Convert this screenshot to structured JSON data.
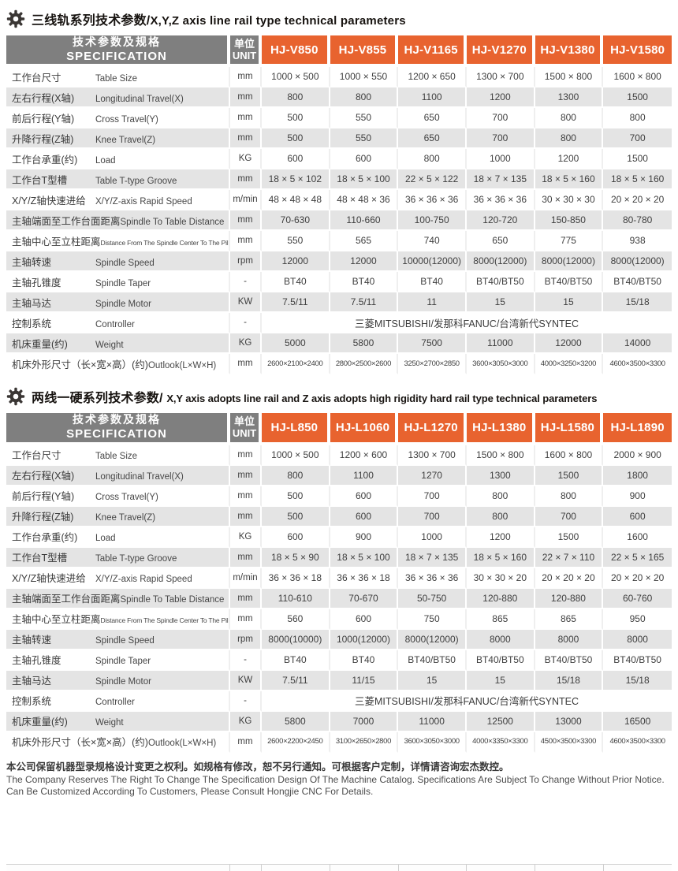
{
  "colors": {
    "accent_orange": "#E8632F",
    "header_gray": "#7F7F7F",
    "row_stripe_gray": "#E4E4E4"
  },
  "footer": {
    "line_zh": "本公司保留机器型录规格设计变更之权利。如规格有修改，恕不另行通知。可根据客户定制，详情请咨询宏杰数控。",
    "line_en": "The Company Reserves The Right To Change The Specification Design Of The Machine Catalog. Specifications Are Subject To Change Without Prior Notice. Can Be Customized According To Customers, Please Consult Hongjie CNC For Details."
  },
  "tables": [
    {
      "title_zh": "三线轨系列技术参数/",
      "title_en": "X,Y,Z axis line rail type technical parameters",
      "spec_header": {
        "zh": "技术参数及规格",
        "en": "SPECIFICATION"
      },
      "unit_header": {
        "zh": "单位",
        "en": "UNIT"
      },
      "models": [
        "HJ-V850",
        "HJ-V855",
        "HJ-V1165",
        "HJ-V1270",
        "HJ-V1380",
        "HJ-V1580"
      ],
      "rows": [
        {
          "label_zh": "工作台尺寸",
          "label_en": "Table Size",
          "unit": "mm",
          "values": [
            "1000 × 500",
            "1000 × 550",
            "1200 × 650",
            "1300 × 700",
            "1500 × 800",
            "1600 × 800"
          ]
        },
        {
          "label_zh": "左右行程(X轴)",
          "label_en": "Longitudinal Travel(X)",
          "unit": "mm",
          "values": [
            "800",
            "800",
            "1100",
            "1200",
            "1300",
            "1500"
          ]
        },
        {
          "label_zh": "前后行程(Y轴)",
          "label_en": "Cross Travel(Y)",
          "unit": "mm",
          "values": [
            "500",
            "550",
            "650",
            "700",
            "800",
            "800"
          ]
        },
        {
          "label_zh": "升降行程(Z轴)",
          "label_en": "Knee Travel(Z)",
          "unit": "mm",
          "values": [
            "500",
            "550",
            "650",
            "700",
            "800",
            "700"
          ]
        },
        {
          "label_zh": "工作台承重(约)",
          "label_en": "Load",
          "unit": "KG",
          "values": [
            "600",
            "600",
            "800",
            "1000",
            "1200",
            "1500"
          ]
        },
        {
          "label_zh": "工作台T型槽",
          "label_en": "Table T-type Groove",
          "unit": "mm",
          "values": [
            "18 × 5 × 102",
            "18 × 5 × 100",
            "22 × 5 × 122",
            "18 × 7 × 135",
            "18 × 5 × 160",
            "18 × 5 × 160"
          ]
        },
        {
          "label_zh": "X/Y/Z轴快速进给",
          "label_en": "X/Y/Z-axis Rapid Speed",
          "unit": "m/min",
          "values": [
            "48 × 48 × 48",
            "48 × 48 × 36",
            "36 × 36 × 36",
            "36 × 36 × 36",
            "30 × 30 × 30",
            "20 × 20 × 20"
          ]
        },
        {
          "label_zh": "主轴端面至工作台面距离",
          "label_en": "Spindle To Table Distance",
          "unit": "mm",
          "values": [
            "70-630",
            "110-660",
            "100-750",
            "120-720",
            "150-850",
            "80-780"
          ]
        },
        {
          "label_zh": "主轴中心至立柱距离",
          "label_en": "Distance From The Spindle Center To The Pillar",
          "small_label_en": true,
          "unit": "mm",
          "values": [
            "550",
            "565",
            "740",
            "650",
            "775",
            "938"
          ]
        },
        {
          "label_zh": "主轴转速",
          "label_en": "Spindle Speed",
          "unit": "rpm",
          "values": [
            "12000",
            "12000",
            "10000(12000)",
            "8000(12000)",
            "8000(12000)",
            "8000(12000)"
          ]
        },
        {
          "label_zh": "主轴孔锥度",
          "label_en": "Spindle Taper",
          "unit": "-",
          "values": [
            "BT40",
            "BT40",
            "BT40",
            "BT40/BT50",
            "BT40/BT50",
            "BT40/BT50"
          ]
        },
        {
          "label_zh": "主轴马达",
          "label_en": "Spindle Motor",
          "unit": "KW",
          "values": [
            "7.5/11",
            "7.5/11",
            "11",
            "15",
            "15",
            "15/18"
          ]
        },
        {
          "label_zh": "控制系统",
          "label_en": "Controller",
          "unit": "-",
          "merged_value": "三菱MITSUBISHI/发那科FANUC/台湾新代SYNTEC"
        },
        {
          "label_zh": "机床重量(约)",
          "label_en": "Weight",
          "unit": "KG",
          "values": [
            "5000",
            "5800",
            "7500",
            "11000",
            "12000",
            "14000"
          ]
        },
        {
          "label_zh": "机床外形尺寸（长×宽×高）(约)",
          "label_en": "Outlook(L×W×H)",
          "unit": "mm",
          "small_values": true,
          "values": [
            "2600×2100×2400",
            "2800×2500×2600",
            "3250×2700×2850",
            "3600×3050×3000",
            "4000×3250×3200",
            "4600×3500×3300"
          ]
        }
      ]
    },
    {
      "title_zh": "两线一硬系列技术参数/",
      "title_en": "X,Y axis adopts line rail and Z axis adopts high rigidity hard rail type technical parameters",
      "spec_header": {
        "zh": "技术参数及规格",
        "en": "SPECIFICATION"
      },
      "unit_header": {
        "zh": "单位",
        "en": "UNIT"
      },
      "models": [
        "HJ-L850",
        "HJ-L1060",
        "HJ-L1270",
        "HJ-L1380",
        "HJ-L1580",
        "HJ-L1890"
      ],
      "rows": [
        {
          "label_zh": "工作台尺寸",
          "label_en": "Table Size",
          "unit": "mm",
          "values": [
            "1000 × 500",
            "1200 × 600",
            "1300 × 700",
            "1500 × 800",
            "1600 × 800",
            "2000 × 900"
          ]
        },
        {
          "label_zh": "左右行程(X轴)",
          "label_en": "Longitudinal Travel(X)",
          "unit": "mm",
          "values": [
            "800",
            "1100",
            "1270",
            "1300",
            "1500",
            "1800"
          ]
        },
        {
          "label_zh": "前后行程(Y轴)",
          "label_en": "Cross Travel(Y)",
          "unit": "mm",
          "values": [
            "500",
            "600",
            "700",
            "800",
            "800",
            "900"
          ]
        },
        {
          "label_zh": "升降行程(Z轴)",
          "label_en": "Knee Travel(Z)",
          "unit": "mm",
          "values": [
            "500",
            "600",
            "700",
            "800",
            "700",
            "600"
          ]
        },
        {
          "label_zh": "工作台承重(约)",
          "label_en": "Load",
          "unit": "KG",
          "values": [
            "600",
            "900",
            "1000",
            "1200",
            "1500",
            "1600"
          ]
        },
        {
          "label_zh": "工作台T型槽",
          "label_en": "Table T-type Groove",
          "unit": "mm",
          "values": [
            "18 × 5 × 90",
            "18 × 5 × 100",
            "18 × 7 × 135",
            "18 × 5 × 160",
            "22 × 7 × 110",
            "22 × 5 × 165"
          ]
        },
        {
          "label_zh": "X/Y/Z轴快速进给",
          "label_en": "X/Y/Z-axis Rapid Speed",
          "unit": "m/min",
          "values": [
            "36 × 36 × 18",
            "36 × 36 × 18",
            "36 × 36 × 36",
            "30 × 30 × 20",
            "20 × 20 × 20",
            "20 × 20 × 20"
          ]
        },
        {
          "label_zh": "主轴端面至工作台面距离",
          "label_en": "Spindle To Table Distance",
          "unit": "mm",
          "values": [
            "110-610",
            "70-670",
            "50-750",
            "120-880",
            "120-880",
            "60-760"
          ]
        },
        {
          "label_zh": "主轴中心至立柱距离",
          "label_en": "Distance From The Spindle Center To The Pillar",
          "small_label_en": true,
          "unit": "mm",
          "values": [
            "560",
            "600",
            "750",
            "865",
            "865",
            "950"
          ]
        },
        {
          "label_zh": "主轴转速",
          "label_en": "Spindle Speed",
          "unit": "rpm",
          "values": [
            "8000(10000)",
            "1000(12000)",
            "8000(12000)",
            "8000",
            "8000",
            "8000"
          ]
        },
        {
          "label_zh": "主轴孔锥度",
          "label_en": "Spindle Taper",
          "unit": "-",
          "values": [
            "BT40",
            "BT40",
            "BT40/BT50",
            "BT40/BT50",
            "BT40/BT50",
            "BT40/BT50"
          ]
        },
        {
          "label_zh": "主轴马达",
          "label_en": "Spindle Motor",
          "unit": "KW",
          "values": [
            "7.5/11",
            "11/15",
            "15",
            "15",
            "15/18",
            "15/18"
          ]
        },
        {
          "label_zh": "控制系统",
          "label_en": "Controller",
          "unit": "-",
          "merged_value": "三菱MITSUBISHI/发那科FANUC/台湾新代SYNTEC"
        },
        {
          "label_zh": "机床重量(约)",
          "label_en": "Weight",
          "unit": "KG",
          "values": [
            "5800",
            "7000",
            "11000",
            "12500",
            "13000",
            "16500"
          ]
        },
        {
          "label_zh": "机床外形尺寸（长×宽×高）(约)",
          "label_en": "Outlook(L×W×H)",
          "unit": "mm",
          "small_values": true,
          "values": [
            "2600×2200×2450",
            "3100×2650×2800",
            "3600×3050×3000",
            "4000×3350×3300",
            "4500×3500×3300",
            "4600×3500×3300"
          ]
        }
      ]
    }
  ]
}
